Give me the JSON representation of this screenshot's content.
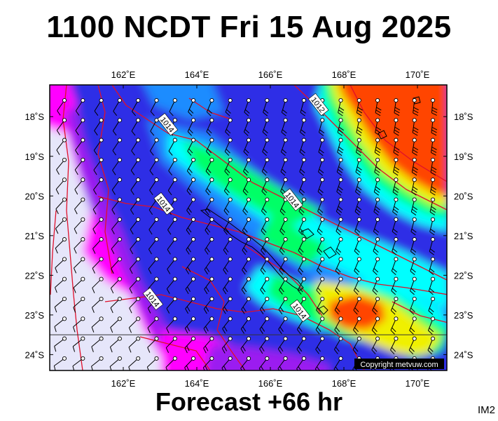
{
  "header": {
    "title": "1100 NCDT Fri 15 Aug 2025"
  },
  "footer": {
    "forecast": "Forecast +66 hr"
  },
  "corner_label": "IM2",
  "map": {
    "copyright": "Copyright metvuw.com",
    "lon_ticks": [
      {
        "value": 162,
        "label": "162˚E"
      },
      {
        "value": 164,
        "label": "164˚E"
      },
      {
        "value": 166,
        "label": "166˚E"
      },
      {
        "value": 168,
        "label": "168˚E"
      },
      {
        "value": 170,
        "label": "170˚E"
      }
    ],
    "lat_ticks": [
      {
        "value": -18,
        "label": "18˚S"
      },
      {
        "value": -19,
        "label": "19˚S"
      },
      {
        "value": -20,
        "label": "20˚S"
      },
      {
        "value": -21,
        "label": "21˚S"
      },
      {
        "value": -22,
        "label": "22˚S"
      },
      {
        "value": -23,
        "label": "23˚S"
      },
      {
        "value": -24,
        "label": "24˚S"
      }
    ],
    "lon_range": [
      160.0,
      170.8
    ],
    "lat_range": [
      -24.4,
      -17.2
    ],
    "isobar_labels": [
      {
        "text": "1012",
        "lon": 167.3,
        "lat": -17.7
      },
      {
        "text": "1014",
        "lon": 163.2,
        "lat": -18.2
      },
      {
        "text": "1014",
        "lon": 163.1,
        "lat": -20.2
      },
      {
        "text": "1014",
        "lon": 166.6,
        "lat": -20.1
      },
      {
        "text": "1014",
        "lon": 162.8,
        "lat": -22.6
      },
      {
        "text": "1014",
        "lon": 166.8,
        "lat": -22.9
      }
    ],
    "colors": {
      "light": "#e6e6fa",
      "magenta": "#ff00ff",
      "violet": "#9b1df0",
      "blue": "#2e2ee6",
      "azure": "#1a8cff",
      "cyan": "#00ffff",
      "green": "#00ff66",
      "yellow": "#f0f000",
      "orange": "#ff4400",
      "isobar": "#e0102a",
      "coast": "#000000"
    }
  }
}
